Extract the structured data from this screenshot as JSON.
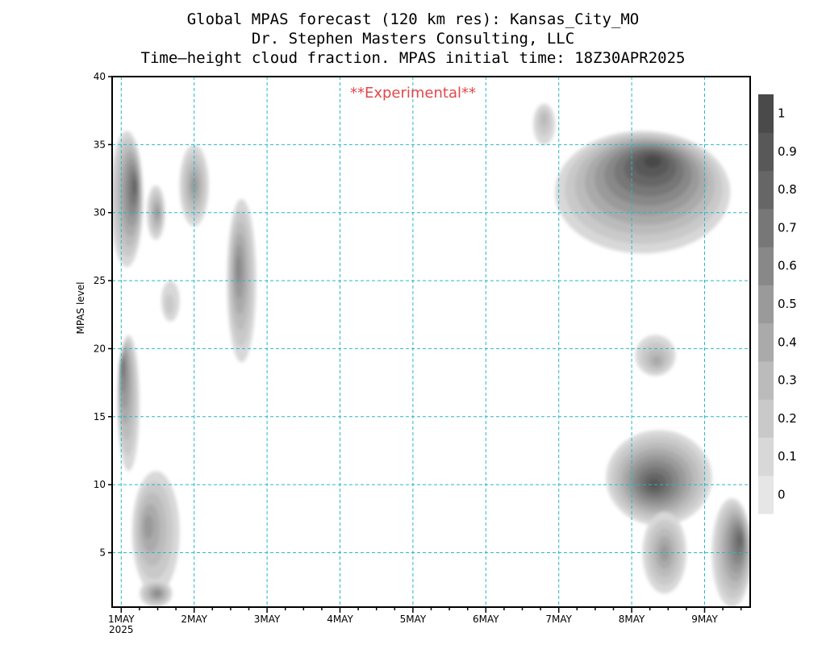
{
  "titles": [
    "Global MPAS forecast (120 km res): Kansas_City_MO",
    "Dr. Stephen Masters Consulting, LLC",
    "Time—height cloud fraction.   MPAS initial time: 18Z30APR2025"
  ],
  "annotation": "**Experimental**",
  "colors": {
    "grid": "#27b7c8",
    "annotation": "#e0484a",
    "shades": [
      "#e6e6e6",
      "#d8d8d8",
      "#c9c9c9",
      "#bbbbbb",
      "#aaaaaa",
      "#9a9a9a",
      "#888888",
      "#777777",
      "#666666",
      "#585858",
      "#4a4a4a"
    ]
  },
  "chart_data": {
    "type": "heatmap",
    "title": "Global MPAS forecast (120 km res): Kansas_City_MO",
    "ylabel": "MPAS level",
    "xlabel": "",
    "x_ticks": [
      "1MAY",
      "2MAY",
      "3MAY",
      "4MAY",
      "5MAY",
      "6MAY",
      "7MAY",
      "8MAY",
      "9MAY"
    ],
    "x_year_label": "2025",
    "xlim": [
      -0.125,
      8.625
    ],
    "ylim": [
      1,
      40
    ],
    "y_ticks": [
      5,
      10,
      15,
      20,
      25,
      30,
      35,
      40
    ],
    "colorbar": {
      "levels": [
        0,
        0.1,
        0.2,
        0.3,
        0.4,
        0.5,
        0.6,
        0.7,
        0.8,
        0.9,
        1
      ],
      "labels": [
        "0",
        "0.1",
        "0.2",
        "0.3",
        "0.4",
        "0.5",
        "0.6",
        "0.7",
        "0.8",
        "0.9",
        "1"
      ]
    },
    "grid": true,
    "cloud_regions": [
      {
        "name": "upper-1may",
        "x_range": [
          -0.15,
          0.3
        ],
        "y_range": [
          26,
          36
        ],
        "peak": 0.8,
        "peak_x": 0.2,
        "peak_y": 32
      },
      {
        "name": "upper-1may-b",
        "x_range": [
          0.35,
          0.6
        ],
        "y_range": [
          28,
          32
        ],
        "peak": 0.5,
        "peak_x": 0.5,
        "peak_y": 30
      },
      {
        "name": "upper-2may",
        "x_range": [
          0.8,
          1.2
        ],
        "y_range": [
          29,
          35
        ],
        "peak": 0.5,
        "peak_x": 1.0,
        "peak_y": 32
      },
      {
        "name": "mid-2.6may",
        "x_range": [
          1.45,
          1.85
        ],
        "y_range": [
          19,
          31
        ],
        "peak": 0.6,
        "peak_x": 1.6,
        "peak_y": 26
      },
      {
        "name": "blob-1.6may",
        "x_range": [
          0.55,
          0.8
        ],
        "y_range": [
          22,
          25
        ],
        "peak": 0.2,
        "peak_x": 0.65,
        "peak_y": 23
      },
      {
        "name": "low-1may",
        "x_range": [
          -0.05,
          0.25
        ],
        "y_range": [
          11,
          21
        ],
        "peak": 0.7,
        "peak_x": 0.0,
        "peak_y": 19
      },
      {
        "name": "low-1.4may",
        "x_range": [
          0.15,
          0.8
        ],
        "y_range": [
          2,
          11
        ],
        "peak": 0.5,
        "peak_x": 0.35,
        "peak_y": 7
      },
      {
        "name": "bottom-1.6may",
        "x_range": [
          0.25,
          0.7
        ],
        "y_range": [
          1,
          3
        ],
        "peak": 0.6,
        "peak_x": 0.5,
        "peak_y": 2
      },
      {
        "name": "top-6.8may",
        "x_range": [
          5.65,
          5.95
        ],
        "y_range": [
          35,
          38
        ],
        "peak": 0.3,
        "peak_x": 5.8,
        "peak_y": 37
      },
      {
        "name": "upper-7-9may",
        "x_range": [
          5.95,
          8.35
        ],
        "y_range": [
          27,
          36
        ],
        "peak": 0.95,
        "peak_x": 7.3,
        "peak_y": 34
      },
      {
        "name": "mid-8.2may",
        "x_range": [
          7.05,
          7.6
        ],
        "y_range": [
          18,
          21
        ],
        "peak": 0.4,
        "peak_x": 7.35,
        "peak_y": 19
      },
      {
        "name": "low-8may",
        "x_range": [
          6.65,
          8.1
        ],
        "y_range": [
          7,
          14
        ],
        "peak": 0.9,
        "peak_x": 7.3,
        "peak_y": 10
      },
      {
        "name": "low-8.5may",
        "x_range": [
          7.15,
          7.75
        ],
        "y_range": [
          2,
          8
        ],
        "peak": 0.5,
        "peak_x": 7.45,
        "peak_y": 5
      },
      {
        "name": "low-9.4may",
        "x_range": [
          8.1,
          8.65
        ],
        "y_range": [
          1,
          9
        ],
        "peak": 0.75,
        "peak_x": 8.5,
        "peak_y": 6
      }
    ]
  }
}
